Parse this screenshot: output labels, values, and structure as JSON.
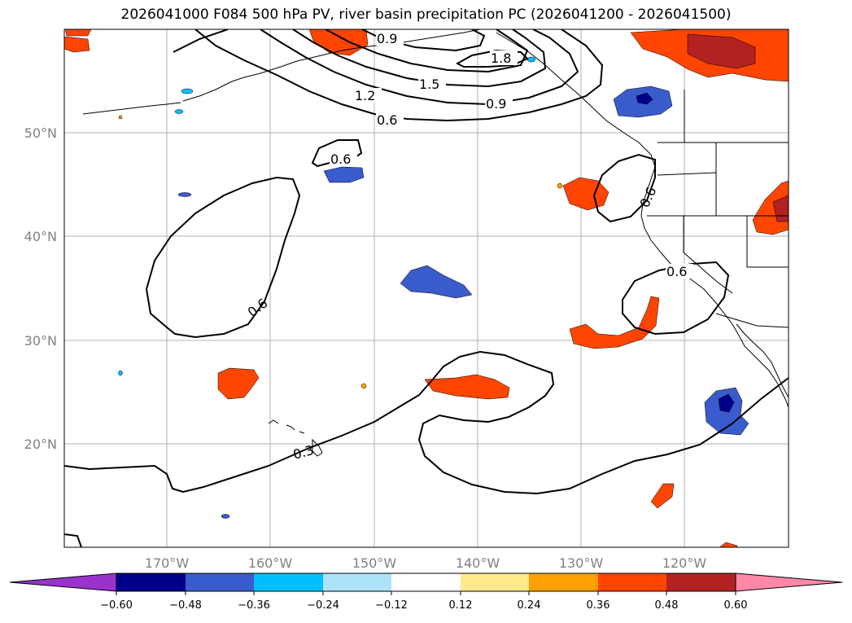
{
  "title": "2026041000 F084 500 hPa PV, river basin precipitation PC (2026041200 - 2026041500)",
  "lat_labels": [
    "50°N",
    "40°N",
    "30°N",
    "20°N"
  ],
  "lon_labels": [
    "170°W",
    "160°W",
    "150°W",
    "140°W",
    "130°W",
    "120°W"
  ],
  "contour_labels": [
    "0.9",
    "1.8",
    "1.5",
    "1.2",
    "0.9",
    "0.6",
    "0.6",
    "0.6",
    "0.6",
    "0.6",
    "0.3"
  ],
  "colorbar": {
    "ticks": [
      "−0.60",
      "−0.48",
      "−0.36",
      "−0.24",
      "−0.12",
      "0.12",
      "0.24",
      "0.36",
      "0.48",
      "0.60"
    ],
    "colors": {
      "under": "#9933cc",
      "bins": [
        "#00008b",
        "#3a5bcc",
        "#00bfff",
        "#ade3fa",
        "#ffffff",
        "#ffe98a",
        "#ffa000",
        "#ff4500",
        "#b22222"
      ],
      "over": "#ff88a8"
    }
  }
}
